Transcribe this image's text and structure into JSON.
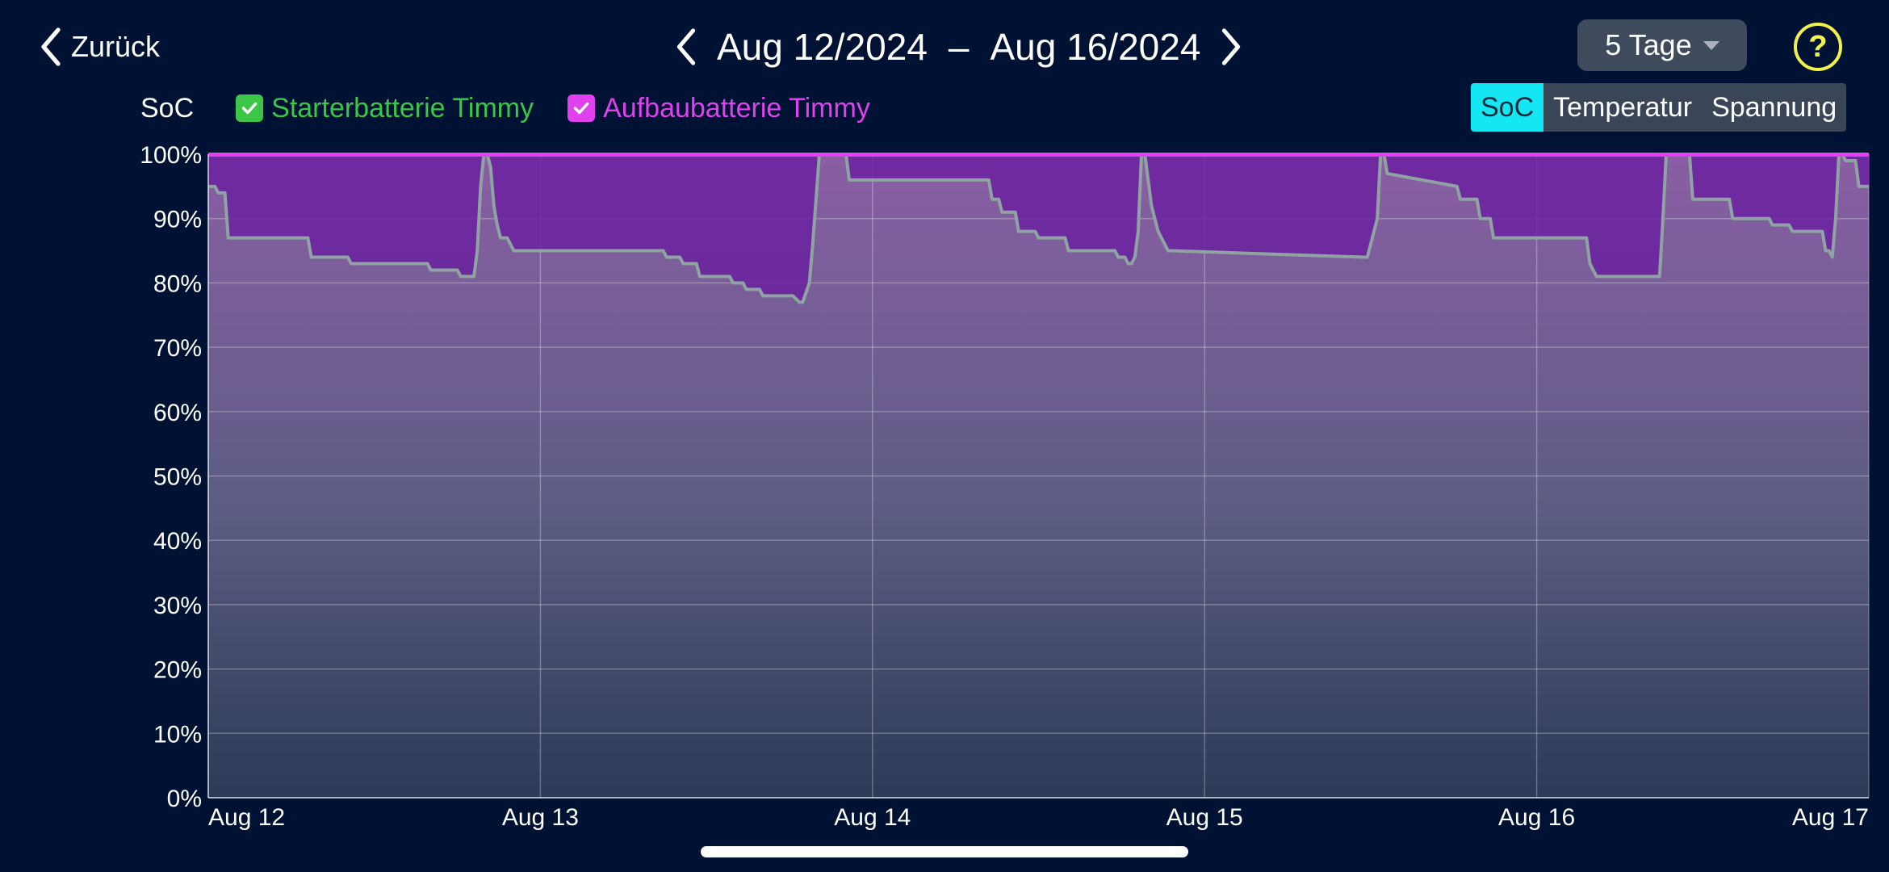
{
  "nav": {
    "back_label": "Zurück"
  },
  "date_range": {
    "from": "Aug 12/2024",
    "separator": "–",
    "to": "Aug 16/2024"
  },
  "range_select": {
    "value": "5 Tage"
  },
  "legend": {
    "metric_label": "SoC",
    "items": [
      {
        "label": "Starterbatterie Timmy",
        "color": "#3cc648",
        "checked": true
      },
      {
        "label": "Aufbaubatterie Timmy",
        "color": "#e040ee",
        "checked": true
      }
    ]
  },
  "metric_tabs": [
    {
      "label": "SoC",
      "active": true
    },
    {
      "label": "Temperatur",
      "active": false
    },
    {
      "label": "Spannung",
      "active": false
    }
  ],
  "chart_data": {
    "type": "area",
    "ylim": [
      0,
      100
    ],
    "xlim": [
      0,
      5
    ],
    "yticks": [
      "0%",
      "10%",
      "20%",
      "30%",
      "40%",
      "50%",
      "60%",
      "70%",
      "80%",
      "90%",
      "100%"
    ],
    "xticks": [
      {
        "value": 0,
        "label": "Aug 12"
      },
      {
        "value": 1,
        "label": "Aug 13"
      },
      {
        "value": 2,
        "label": "Aug 14"
      },
      {
        "value": 3,
        "label": "Aug 15"
      },
      {
        "value": 4,
        "label": "Aug 16"
      },
      {
        "value": 5,
        "label": "Aug 17"
      }
    ],
    "grid": true,
    "series": [
      {
        "name": "Starterbatterie Timmy",
        "color": "#3cc648",
        "x": [
          0,
          5
        ],
        "y": [
          100,
          100
        ]
      },
      {
        "name": "Aufbaubatterie Timmy",
        "color": "#e040ee",
        "x": [
          0,
          0.02,
          0.03,
          0.05,
          0.06,
          0.3,
          0.31,
          0.42,
          0.43,
          0.66,
          0.67,
          0.75,
          0.76,
          0.8,
          0.81,
          0.82,
          0.83,
          0.84,
          0.85,
          0.86,
          0.87,
          0.88,
          0.9,
          0.92,
          0.95,
          1.37,
          1.38,
          1.42,
          1.43,
          1.47,
          1.48,
          1.57,
          1.58,
          1.61,
          1.62,
          1.66,
          1.67,
          1.76,
          1.78,
          1.79,
          1.81,
          1.82,
          1.84,
          1.86,
          1.88,
          1.92,
          1.93,
          2.35,
          2.36,
          2.38,
          2.39,
          2.43,
          2.44,
          2.49,
          2.5,
          2.58,
          2.59,
          2.73,
          2.74,
          2.76,
          2.77,
          2.78,
          2.79,
          2.8,
          2.81,
          2.82,
          2.83,
          2.84,
          2.86,
          2.89,
          2.9,
          3.48,
          3.49,
          3.52,
          3.53,
          3.54,
          3.55,
          3.76,
          3.77,
          3.82,
          3.83,
          3.86,
          3.87,
          4.15,
          4.16,
          4.17,
          4.18,
          4.19,
          4.2,
          4.21,
          4.37,
          4.38,
          4.39,
          4.4,
          4.46,
          4.47,
          4.58,
          4.59,
          4.7,
          4.71,
          4.76,
          4.77,
          4.86,
          4.87,
          4.88,
          4.89,
          4.9,
          4.91,
          4.92,
          4.93,
          4.96,
          4.97,
          5
        ],
        "y": [
          95,
          95,
          94,
          94,
          87,
          87,
          84,
          84,
          83,
          83,
          82,
          82,
          81,
          81,
          85,
          95,
          100,
          100,
          98,
          92,
          89,
          87,
          87,
          85,
          85,
          85,
          84,
          84,
          83,
          83,
          81,
          81,
          80,
          80,
          79,
          79,
          78,
          78,
          77,
          77,
          80,
          86,
          100,
          100,
          100,
          100,
          96,
          96,
          93,
          93,
          91,
          91,
          88,
          88,
          87,
          87,
          85,
          85,
          84,
          84,
          83,
          83,
          84,
          88,
          100,
          100,
          96,
          92,
          88,
          85,
          85,
          84,
          84,
          90,
          100,
          100,
          97,
          95,
          93,
          93,
          90,
          90,
          87,
          87,
          83,
          82,
          81,
          81,
          81,
          81,
          81,
          90,
          100,
          100,
          100,
          93,
          93,
          90,
          90,
          89,
          89,
          88,
          88,
          85,
          85,
          84,
          90,
          100,
          100,
          99,
          99,
          95,
          95
        ]
      }
    ]
  }
}
